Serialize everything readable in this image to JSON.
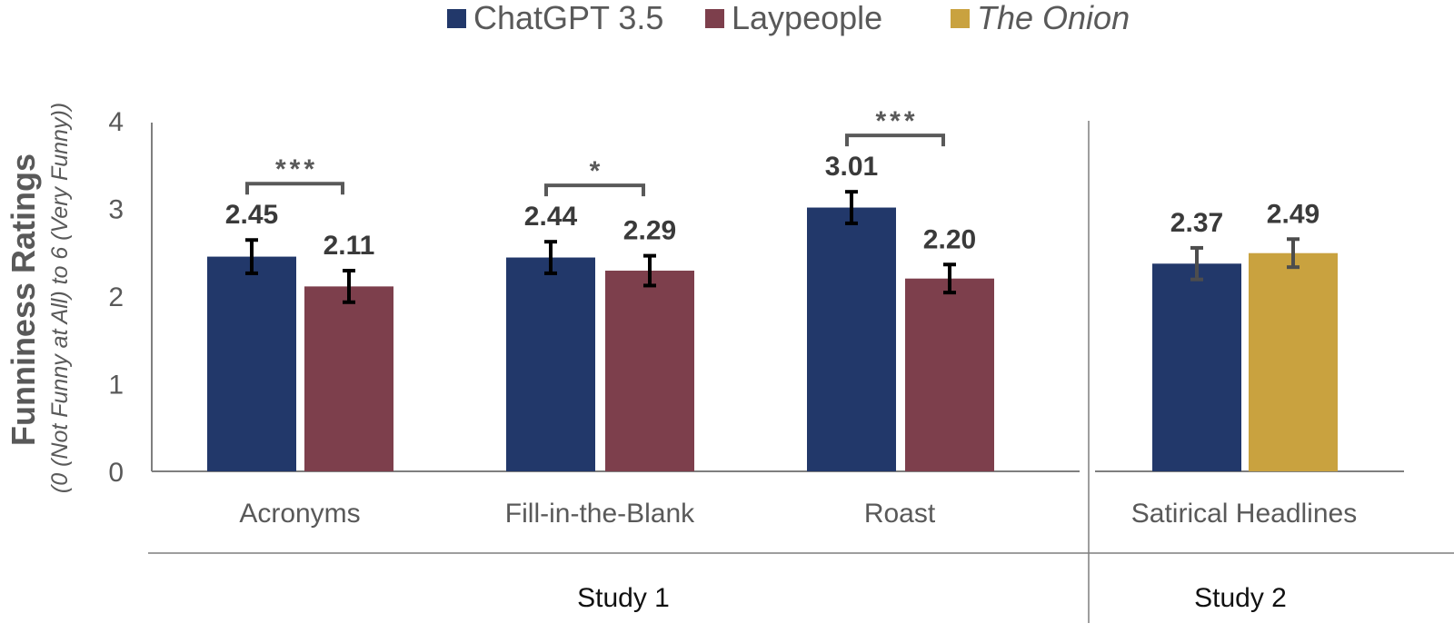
{
  "chart_data": {
    "type": "bar",
    "title": "",
    "ylabel": "Funniness Ratings",
    "ylabel_sub": "(0 (Not Funny at All) to 6 (Very Funny))",
    "ylim": [
      0,
      4
    ],
    "yticks": [
      "0",
      "1",
      "2",
      "3",
      "4"
    ],
    "grid": false,
    "legend_position": "top",
    "legend": [
      {
        "name": "ChatGPT 3.5",
        "color": "#22386a",
        "italic": false
      },
      {
        "name": "Laypeople",
        "color": "#7d3f4c",
        "italic": false
      },
      {
        "name": "The Onion",
        "color": "#c9a23f",
        "italic": true
      }
    ],
    "groups": [
      {
        "label": "Study 1",
        "categories": [
          {
            "label": "Acronyms",
            "significance": "***",
            "bars": [
              {
                "series": "ChatGPT 3.5",
                "value": 2.45,
                "error": 0.19,
                "label": "2.45"
              },
              {
                "series": "Laypeople",
                "value": 2.11,
                "error": 0.18,
                "label": "2.11"
              }
            ]
          },
          {
            "label": "Fill-in-the-Blank",
            "significance": "*",
            "bars": [
              {
                "series": "ChatGPT 3.5",
                "value": 2.44,
                "error": 0.18,
                "label": "2.44"
              },
              {
                "series": "Laypeople",
                "value": 2.29,
                "error": 0.17,
                "label": "2.29"
              }
            ]
          },
          {
            "label": "Roast",
            "significance": "***",
            "bars": [
              {
                "series": "ChatGPT 3.5",
                "value": 3.01,
                "error": 0.18,
                "label": "3.01"
              },
              {
                "series": "Laypeople",
                "value": 2.2,
                "error": 0.16,
                "label": "2.20"
              }
            ]
          }
        ]
      },
      {
        "label": "Study 2",
        "categories": [
          {
            "label": "Satirical Headlines",
            "significance": "",
            "bars": [
              {
                "series": "ChatGPT 3.5",
                "value": 2.37,
                "error": 0.18,
                "label": "2.37"
              },
              {
                "series": "The Onion",
                "value": 2.49,
                "error": 0.16,
                "label": "2.49"
              }
            ]
          }
        ]
      }
    ]
  }
}
